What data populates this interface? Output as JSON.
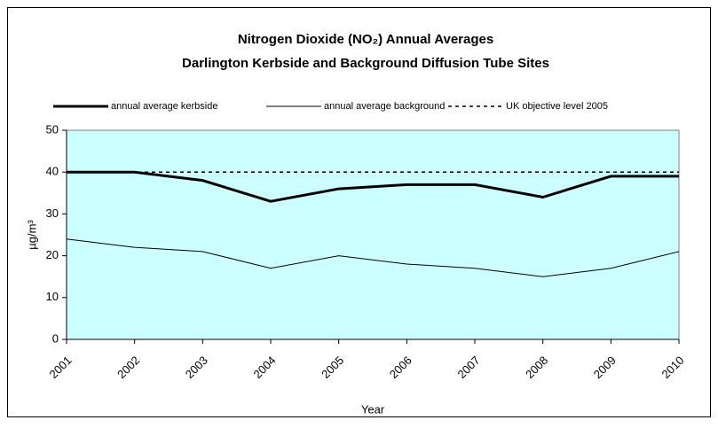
{
  "chart_data": {
    "type": "line",
    "title": "Nitrogen Dioxide (NO₂) Annual Averages",
    "subtitle": "Darlington Kerbside and Background Diffusion Tube Sites",
    "x_label": "Year",
    "y_label": "µg/m³",
    "categories": [
      "2001",
      "2002",
      "2003",
      "2004",
      "2005",
      "2006",
      "2007",
      "2008",
      "2009",
      "2010"
    ],
    "series": [
      {
        "name": "annual average kerbside",
        "color": "#000000",
        "line_width": 3,
        "dashed": false,
        "values": [
          40,
          40,
          38,
          33,
          36,
          37,
          37,
          34,
          39,
          39
        ]
      },
      {
        "name": "annual average background",
        "color": "#000000",
        "line_width": 1,
        "dashed": false,
        "values": [
          24,
          22,
          21,
          17,
          20,
          18,
          17,
          15,
          17,
          21
        ]
      },
      {
        "name": "UK objective level 2005",
        "color": "#000000",
        "line_width": 1.5,
        "dashed": true,
        "values": [
          40,
          40,
          40,
          40,
          40,
          40,
          40,
          40,
          40,
          40
        ]
      }
    ],
    "ylim": [
      0,
      50
    ],
    "yticks": [
      0,
      10,
      20,
      30,
      40,
      50
    ],
    "plot_background": "#ccffff",
    "grid": false,
    "legend_position": "top"
  }
}
